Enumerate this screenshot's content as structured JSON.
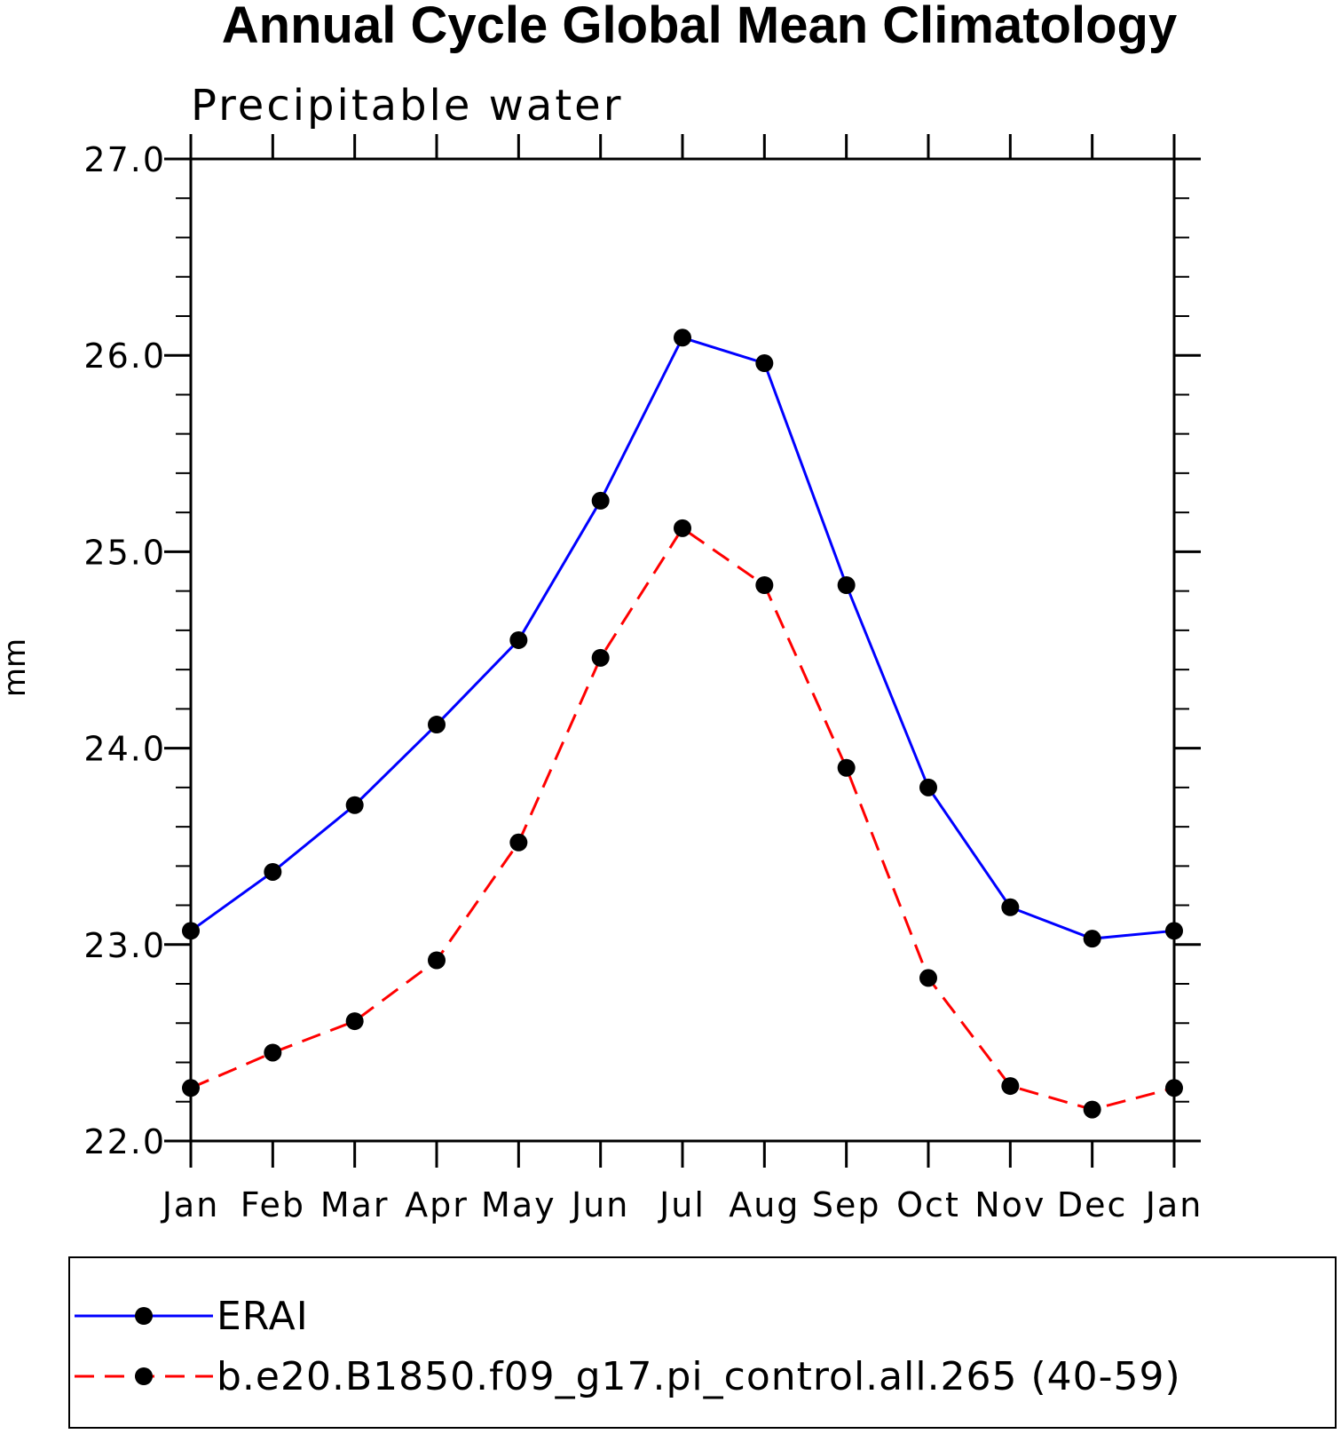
{
  "chart_data": {
    "type": "line",
    "title": "Annual Cycle Global Mean Climatology",
    "subtitle": "Precipitable water",
    "xlabel": "",
    "ylabel": "mm",
    "categories": [
      "Jan",
      "Feb",
      "Mar",
      "Apr",
      "May",
      "Jun",
      "Jul",
      "Aug",
      "Sep",
      "Oct",
      "Nov",
      "Dec",
      "Jan"
    ],
    "ylim": [
      22.0,
      27.0
    ],
    "yticks": [
      "22.0",
      "23.0",
      "24.0",
      "25.0",
      "26.0",
      "27.0"
    ],
    "grid": false,
    "legend_position": "bottom",
    "series": [
      {
        "name": "ERAI",
        "color": "#0000ff",
        "dash": "solid",
        "values": [
          23.07,
          23.37,
          23.71,
          24.12,
          24.55,
          25.26,
          26.09,
          25.96,
          24.83,
          23.8,
          23.19,
          23.03,
          23.07
        ]
      },
      {
        "name": "b.e20.B1850.f09_g17.pi_control.all.265 (40-59)",
        "color": "#ff0000",
        "dash": "dashed",
        "values": [
          22.27,
          22.45,
          22.61,
          22.92,
          23.52,
          24.46,
          25.12,
          24.83,
          23.9,
          22.83,
          22.28,
          22.16,
          22.27
        ]
      }
    ]
  }
}
